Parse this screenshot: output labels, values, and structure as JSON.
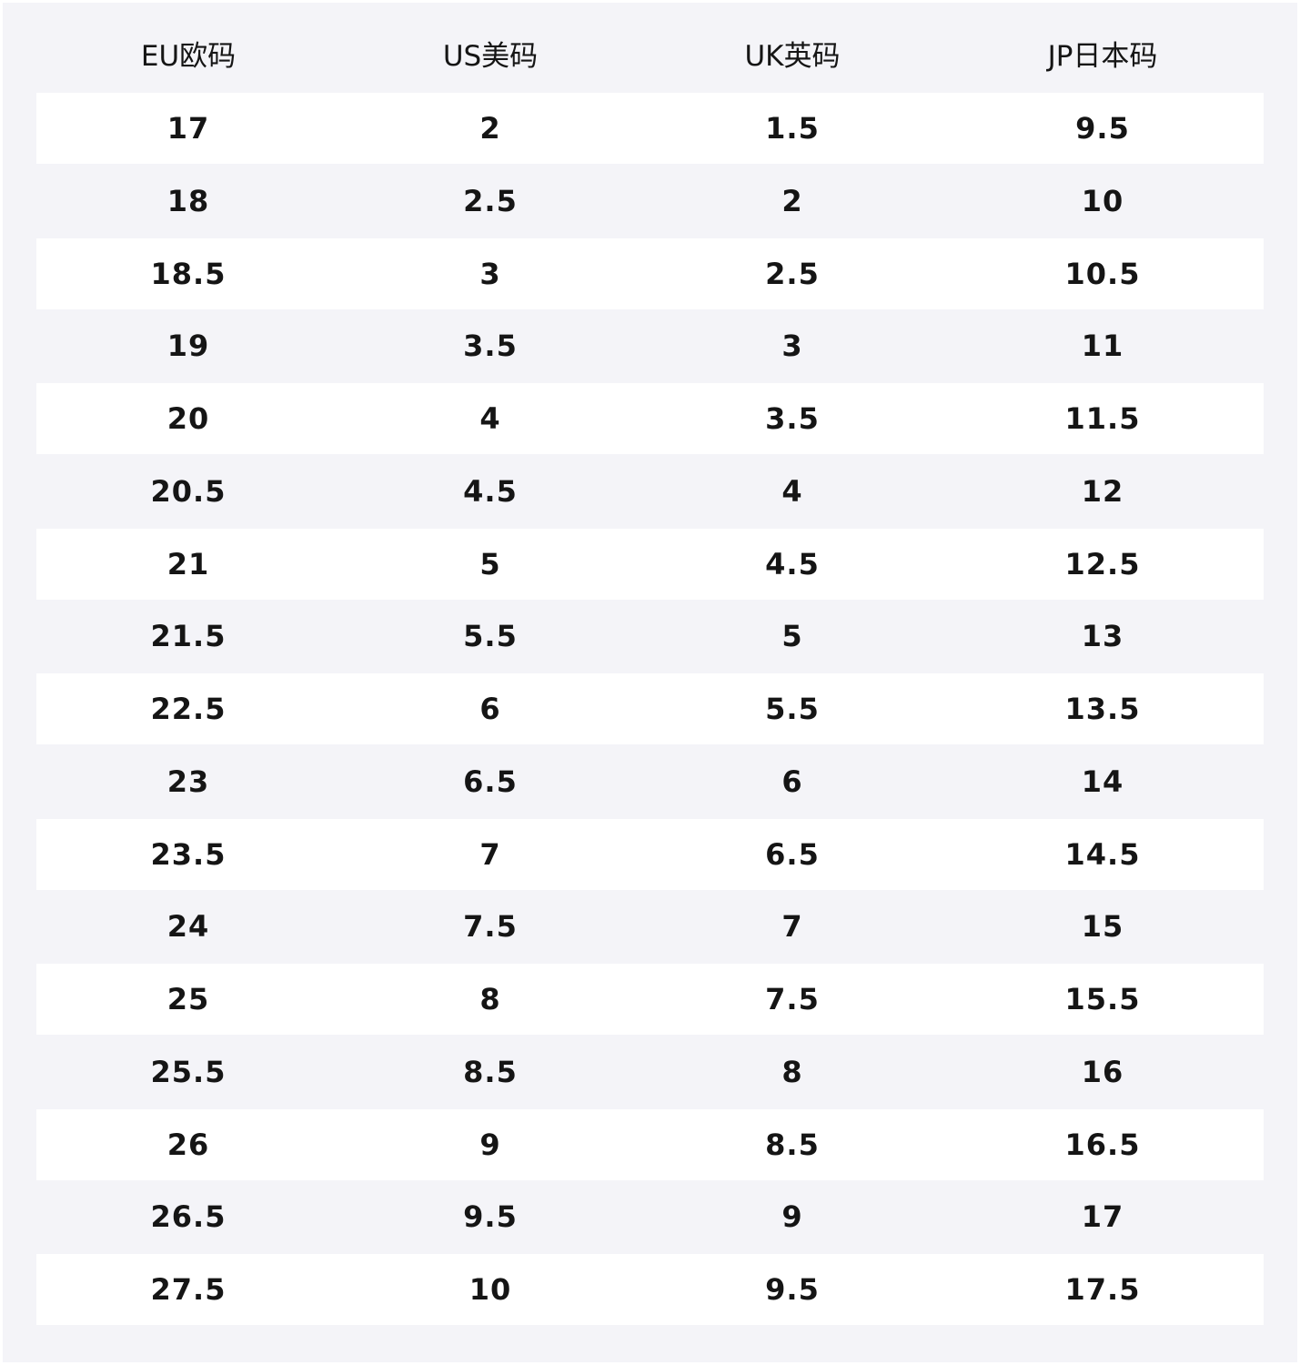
{
  "table": {
    "header": [
      "EU欧码",
      "US美码",
      "UK英码",
      "JP日本码"
    ],
    "rows": [
      [
        "17",
        "2",
        "1.5",
        "9.5"
      ],
      [
        "18",
        "2.5",
        "2",
        "10"
      ],
      [
        "18.5",
        "3",
        "2.5",
        "10.5"
      ],
      [
        "19",
        "3.5",
        "3",
        "11"
      ],
      [
        "20",
        "4",
        "3.5",
        "11.5"
      ],
      [
        "20.5",
        "4.5",
        "4",
        "12"
      ],
      [
        "21",
        "5",
        "4.5",
        "12.5"
      ],
      [
        "21.5",
        "5.5",
        "5",
        "13"
      ],
      [
        "22.5",
        "6",
        "5.5",
        "13.5"
      ],
      [
        "23",
        "6.5",
        "6",
        "14"
      ],
      [
        "23.5",
        "7",
        "6.5",
        "14.5"
      ],
      [
        "24",
        "7.5",
        "7",
        "15"
      ],
      [
        "25",
        "8",
        "7.5",
        "15.5"
      ],
      [
        "25.5",
        "8.5",
        "8",
        "16"
      ],
      [
        "26",
        "9",
        "8.5",
        "16.5"
      ],
      [
        "26.5",
        "9.5",
        "9",
        "17"
      ],
      [
        "27.5",
        "10",
        "9.5",
        "17.5"
      ]
    ]
  }
}
